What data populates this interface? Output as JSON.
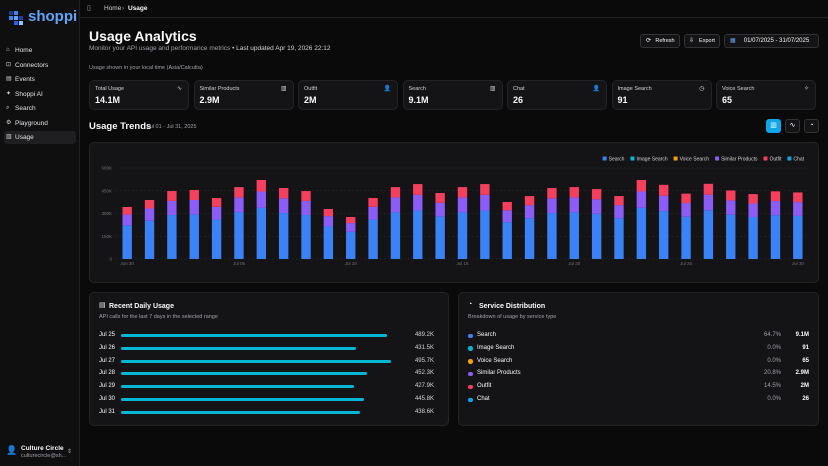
{
  "sidebar": {
    "brand": "shoppi",
    "nav": [
      "Home",
      "Connectors",
      "Events",
      "Shoppi AI",
      "Search",
      "Playground",
      "Usage"
    ],
    "active": 6,
    "user": {
      "name": "Culture Circle",
      "email": "culturecircle@sh..."
    }
  },
  "breadcrumb": [
    "Home",
    "Usage"
  ],
  "header": {
    "title": "Usage Analytics",
    "subtitle": "Monitor your API usage and performance metrics",
    "updated": "• Last updated Apr 19, 2026 22:12",
    "note": "Usage shown in your local time (Asia/Calcutta)",
    "buttons": [
      "Refresh",
      "Export"
    ],
    "date_range": "01/07/2025 - 31/07/2025"
  },
  "stats": [
    {
      "label": "Total Usage",
      "value": "14.1M"
    },
    {
      "label": "Similar Products",
      "value": "2.9M"
    },
    {
      "label": "Outfit",
      "value": "2M"
    },
    {
      "label": "Search",
      "value": "9.1M"
    },
    {
      "label": "Chat",
      "value": "26"
    },
    {
      "label": "Image Search",
      "value": "91"
    },
    {
      "label": "Voice Search",
      "value": "65"
    }
  ],
  "trends": {
    "title": "Usage Trends",
    "range": "Jul 01 - Jul 31, 2025"
  },
  "chart_data": {
    "type": "stacked_bar",
    "categories": [
      "Jun 30",
      null,
      null,
      null,
      null,
      "Jul 05",
      null,
      null,
      null,
      null,
      "Jul 10",
      null,
      null,
      null,
      null,
      "Jul 15",
      null,
      null,
      null,
      null,
      "Jul 20",
      null,
      null,
      null,
      null,
      "Jul 25",
      null,
      null,
      null,
      null,
      "Jul 30"
    ],
    "ylim": [
      0,
      600000
    ],
    "yticks": [
      {
        "value": 0,
        "label": "0"
      },
      {
        "value": 150000,
        "label": "150K"
      },
      {
        "value": 300000,
        "label": "300K"
      },
      {
        "value": 450000,
        "label": "450K"
      },
      {
        "value": 600000,
        "label": "600K"
      }
    ],
    "grid": true,
    "legend": "top-right",
    "series": [
      {
        "name": "Search",
        "color": "#3b82f6",
        "values": [
          222000,
          252000,
          290000,
          294000,
          260000,
          307000,
          337000,
          303000,
          290000,
          214000,
          179000,
          260000,
          307000,
          320000,
          281000,
          307000,
          320000,
          243000,
          269000,
          303000,
          307000,
          298000,
          269000,
          337000,
          316000,
          279000,
          321000,
          292000,
          277000,
          289000,
          284000
        ]
      },
      {
        "name": "Image Search",
        "color": "#06b6d4",
        "values": [
          0,
          0,
          0,
          0,
          0,
          0,
          0,
          0,
          0,
          0,
          0,
          0,
          0,
          0,
          0,
          0,
          0,
          0,
          0,
          0,
          0,
          0,
          0,
          0,
          0,
          0,
          0,
          0,
          0,
          0,
          0
        ]
      },
      {
        "name": "Voice Search",
        "color": "#f59e0b",
        "values": [
          0,
          0,
          0,
          0,
          0,
          0,
          0,
          0,
          0,
          0,
          0,
          0,
          0,
          0,
          0,
          0,
          0,
          0,
          0,
          0,
          0,
          0,
          0,
          0,
          0,
          0,
          0,
          0,
          0,
          0,
          0
        ]
      },
      {
        "name": "Similar Products",
        "color": "#8b5cf6",
        "values": [
          71000,
          81000,
          93000,
          95000,
          84000,
          99000,
          108000,
          97000,
          93000,
          69000,
          58000,
          84000,
          99000,
          103000,
          90000,
          99000,
          103000,
          78000,
          86000,
          97000,
          99000,
          96000,
          86000,
          108000,
          102000,
          90000,
          103000,
          94000,
          89000,
          93000,
          91000
        ]
      },
      {
        "name": "Outfit",
        "color": "#f43f5e",
        "values": [
          50000,
          56000,
          65000,
          66000,
          58000,
          68000,
          76000,
          68000,
          65000,
          47000,
          40000,
          58000,
          68000,
          71000,
          64000,
          68000,
          71000,
          55000,
          60000,
          68000,
          68000,
          67000,
          60000,
          76000,
          71000,
          62000,
          72000,
          66000,
          62000,
          64000,
          64000
        ]
      },
      {
        "name": "Chat",
        "color": "#0ea5e9",
        "values": [
          0,
          0,
          0,
          0,
          0,
          0,
          0,
          0,
          0,
          0,
          0,
          0,
          0,
          0,
          0,
          0,
          0,
          0,
          0,
          0,
          0,
          0,
          0,
          0,
          0,
          0,
          0,
          0,
          0,
          0,
          0
        ]
      }
    ]
  },
  "recent": {
    "title": "Recent Daily Usage",
    "subtitle": "API calls for the last 7 days in the selected range",
    "color": "#06b6d4",
    "rows": [
      {
        "label": "Jul 25",
        "value": 489200,
        "value_label": "489.2K"
      },
      {
        "label": "Jul 26",
        "value": 431500,
        "value_label": "431.5K"
      },
      {
        "label": "Jul 27",
        "value": 495700,
        "value_label": "495.7K"
      },
      {
        "label": "Jul 28",
        "value": 452300,
        "value_label": "452.3K"
      },
      {
        "label": "Jul 29",
        "value": 427900,
        "value_label": "427.9K"
      },
      {
        "label": "Jul 30",
        "value": 445800,
        "value_label": "445.8K"
      },
      {
        "label": "Jul 31",
        "value": 438600,
        "value_label": "438.6K"
      }
    ]
  },
  "distribution": {
    "title": "Service Distribution",
    "subtitle": "Breakdown of usage by service type",
    "rows": [
      {
        "label": "Search",
        "color": "#3b82f6",
        "percent": "64.7%",
        "value": "9.1M"
      },
      {
        "label": "Image Search",
        "color": "#06b6d4",
        "percent": "0.0%",
        "value": "91"
      },
      {
        "label": "Voice Search",
        "color": "#f59e0b",
        "percent": "0.0%",
        "value": "65"
      },
      {
        "label": "Similar Products",
        "color": "#8b5cf6",
        "percent": "20.8%",
        "value": "2.9M"
      },
      {
        "label": "Outfit",
        "color": "#f43f5e",
        "percent": "14.5%",
        "value": "2M"
      },
      {
        "label": "Chat",
        "color": "#0ea5e9",
        "percent": "0.0%",
        "value": "26"
      }
    ]
  }
}
